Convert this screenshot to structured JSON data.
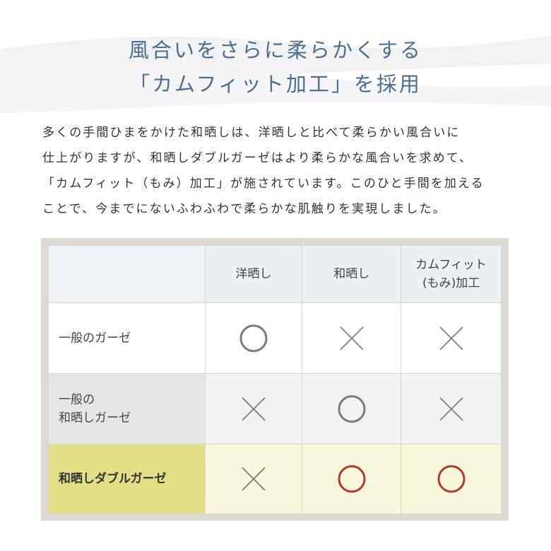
{
  "heading": {
    "line1": "風合いをさらに柔らかくする",
    "line2": "「カムフィット加工」を採用",
    "color": "#4e6e8f"
  },
  "paragraph": [
    "多くの手間ひまをかけた和晒しは、洋晒しと比べて柔らかい風合いに",
    "仕上がりますが、和晒しダブルガーゼはより柔らかな風合いを求めて、",
    "「カムフィット（もみ）加工」が施されています。このひと手間を加える",
    "ことで、今までにないふわふわで柔らかな肌触りを実現しました。"
  ],
  "table": {
    "headers": [
      "",
      "洋晒し",
      "和晒し",
      "カムフィット\n(もみ)加工"
    ],
    "header_lines": [
      "カムフィット",
      "(もみ)加工"
    ],
    "rows": [
      {
        "label": "一般のガーゼ",
        "label_lines": [
          "一般のガーゼ"
        ],
        "marks": [
          "circle",
          "cross",
          "cross"
        ]
      },
      {
        "label": "一般の\n和晒しガーゼ",
        "label_lines": [
          "一般の",
          "和晒しガーゼ"
        ],
        "marks": [
          "cross",
          "circle",
          "cross"
        ]
      },
      {
        "label": "和晒しダブルガーゼ",
        "label_lines": [
          "和晒しダブルガーゼ"
        ],
        "marks": [
          "cross",
          "circle-red",
          "circle-red"
        ]
      }
    ],
    "colors": {
      "circle": "#7a7a7a",
      "circle_red": "#b03a30",
      "cross": "#777777",
      "highlight": "#e3dd85"
    }
  }
}
